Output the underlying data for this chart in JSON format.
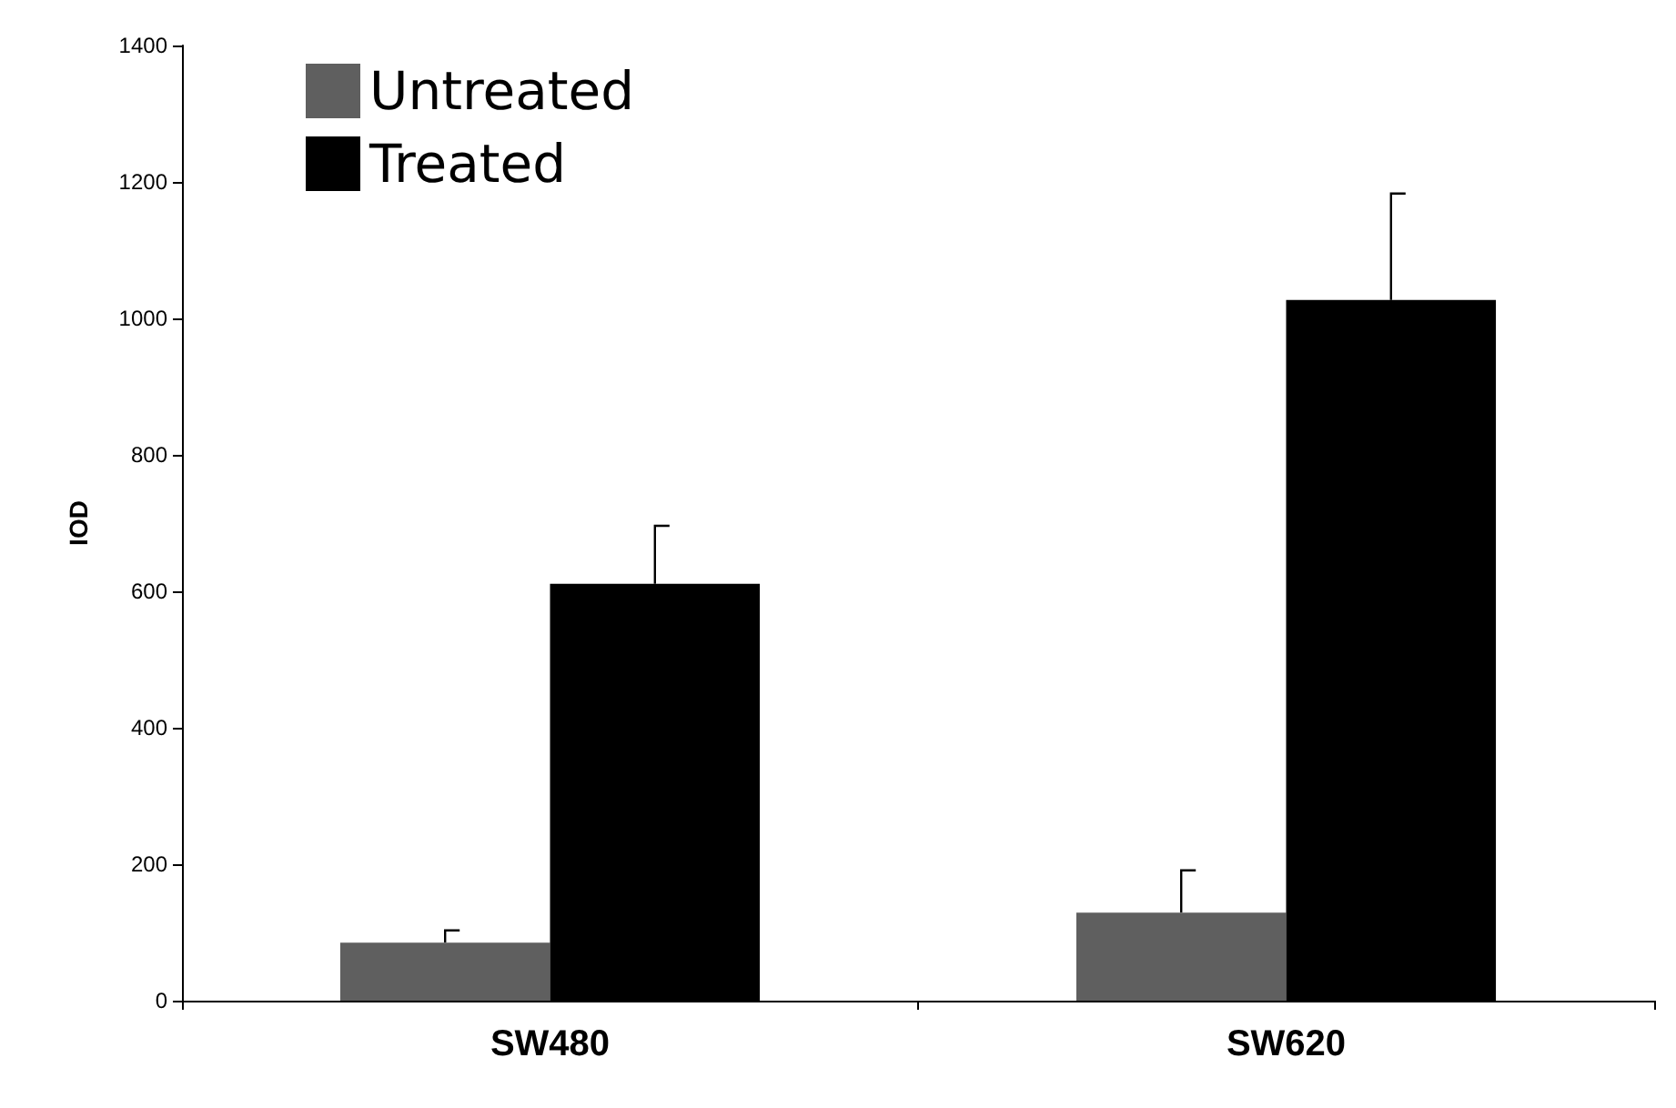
{
  "chart_data": {
    "type": "bar",
    "ylabel": "IOD",
    "categories": [
      "SW480",
      "SW620"
    ],
    "series": [
      {
        "name": "Untreated",
        "color": "#5f5f5f",
        "values": [
          85,
          129
        ],
        "errors": [
          [
            85,
            103
          ],
          [
            129,
            191
          ]
        ]
      },
      {
        "name": "Treated",
        "color": "#000000",
        "values": [
          611,
          1027
        ],
        "errors": [
          [
            611,
            696
          ],
          [
            1027,
            1183
          ]
        ]
      }
    ],
    "ylim": [
      0,
      1400
    ],
    "yticks": [
      0,
      200,
      400,
      600,
      800,
      1000,
      1200,
      1400
    ],
    "grid": false,
    "legend": "top left"
  }
}
